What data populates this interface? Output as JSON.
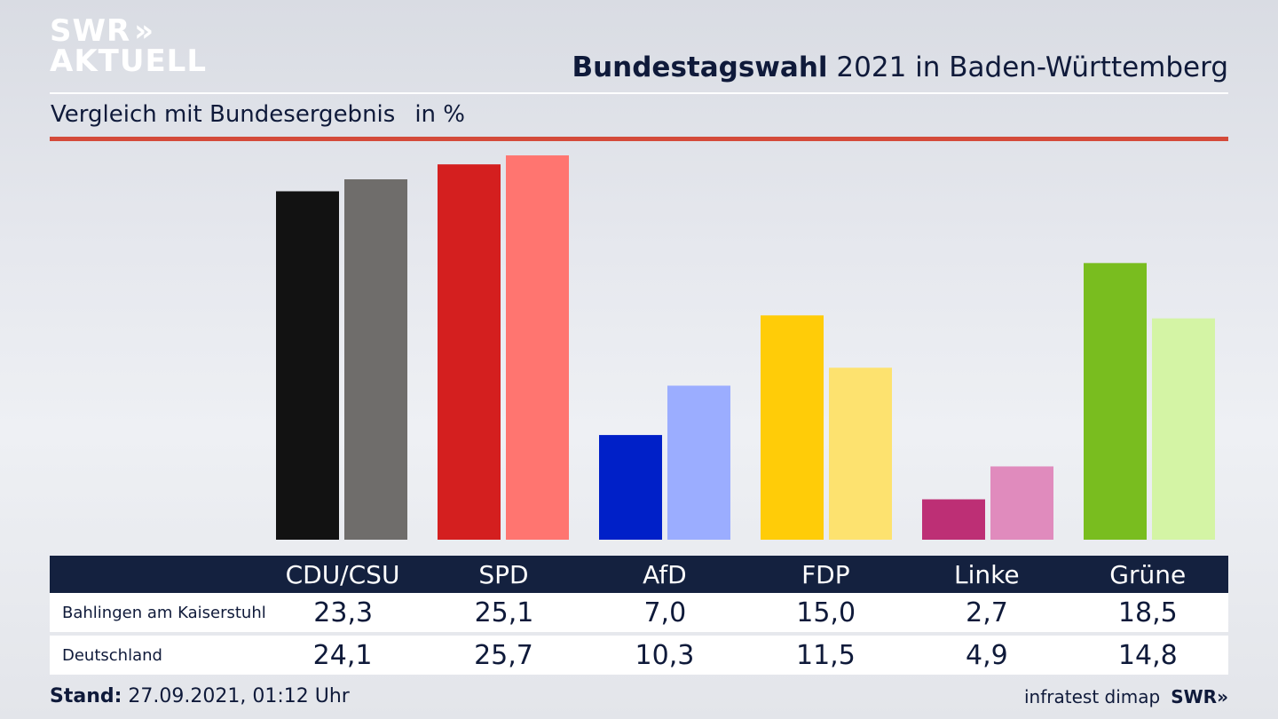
{
  "brand": {
    "line1": "SWR",
    "line2": "AKTUELL",
    "chevrons": "»"
  },
  "header": {
    "title_bold": "Bundestagswahl",
    "title_rest": " 2021 in Baden-Württemberg"
  },
  "subtitle": {
    "text": "Vergleich mit Bundesergebnis",
    "unit": "in %"
  },
  "colors": {
    "title": "#0f1a3a",
    "accent_rule": "#d44a3a",
    "table_header_bg": "#14213f"
  },
  "chart_data": {
    "type": "bar",
    "categories": [
      "CDU/CSU",
      "SPD",
      "AfD",
      "FDP",
      "Linke",
      "Grüne"
    ],
    "series": [
      {
        "name": "Bahlingen am Kaiserstuhl",
        "values": [
          23.3,
          25.1,
          7.0,
          15.0,
          2.7,
          18.5
        ],
        "value_labels": [
          "23,3",
          "25,1",
          "7,0",
          "15,0",
          "2,7",
          "18,5"
        ]
      },
      {
        "name": "Deutschland",
        "values": [
          24.1,
          25.7,
          10.3,
          11.5,
          4.9,
          14.8
        ],
        "value_labels": [
          "24,1",
          "25,7",
          "10,3",
          "11,5",
          "4,9",
          "14,8"
        ]
      }
    ],
    "colors": [
      [
        "#121212",
        "#6f6d6b"
      ],
      [
        "#d41f1f",
        "#ff7570"
      ],
      [
        "#0020c8",
        "#9badff"
      ],
      [
        "#ffcc08",
        "#fde26f"
      ],
      [
        "#bd2f75",
        "#e08bbd"
      ],
      [
        "#79bd1f",
        "#d4f4a5"
      ]
    ],
    "ylim": [
      0,
      26
    ],
    "grid": false
  },
  "footer": {
    "stand_label": "Stand:",
    "stand_value": " 27.09.2021, 01:12 Uhr",
    "source": "infratest dimap",
    "brand": "SWR"
  }
}
